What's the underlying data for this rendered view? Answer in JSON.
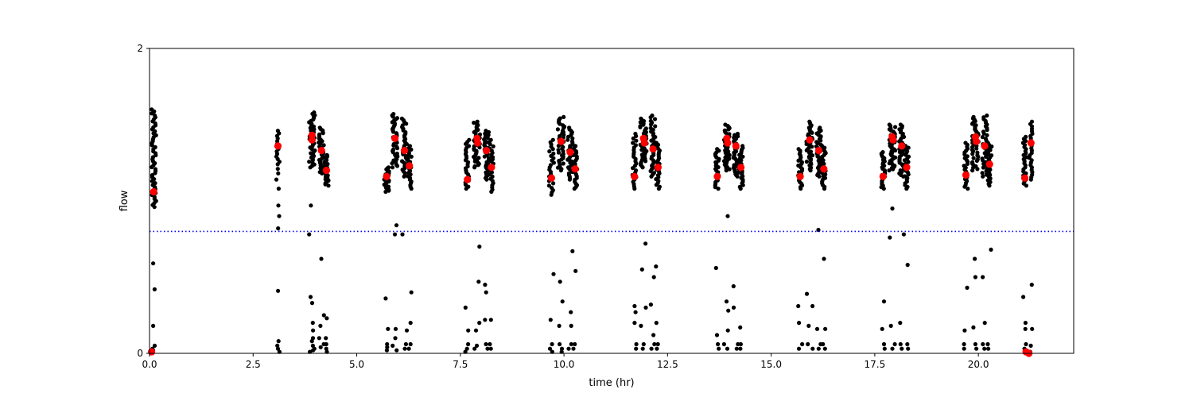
{
  "chart_data": {
    "type": "scatter",
    "title": "",
    "xlabel": "time (hr)",
    "ylabel": "flow",
    "xlim": [
      0,
      22.3
    ],
    "ylim": [
      0,
      2
    ],
    "xticks": [
      {
        "value": 0,
        "label": "0.0"
      },
      {
        "value": 2.5,
        "label": "2.5"
      },
      {
        "value": 5,
        "label": "5.0"
      },
      {
        "value": 7.5,
        "label": "7.5"
      },
      {
        "value": 10,
        "label": "10.0"
      },
      {
        "value": 12.5,
        "label": "12.5"
      },
      {
        "value": 15,
        "label": "15.0"
      },
      {
        "value": 17.5,
        "label": "17.5"
      },
      {
        "value": 20,
        "label": "20.0"
      },
      {
        "value": 22.5,
        "label": ""
      }
    ],
    "yticks": [
      {
        "value": 0,
        "label": "0"
      },
      {
        "value": 2,
        "label": "2"
      }
    ],
    "grid": false,
    "threshold": {
      "y": 0.8,
      "color": "#0000ff",
      "style": "dotted"
    },
    "colors": {
      "raw": "#000000",
      "summary": "#ff0000"
    },
    "clusters": [
      {
        "x": 0.1,
        "spread": 0.06,
        "ymin": 0.96,
        "ymax": 1.6,
        "low": [
          0.42,
          0.18,
          0.05,
          0.03,
          0.02,
          0.59
        ],
        "n": 50
      },
      {
        "x": 3.1,
        "spread": 0.04,
        "ymin": 1.24,
        "ymax": 1.46,
        "low": [
          0.82,
          0.9,
          0.97,
          1.08,
          1.14,
          1.18,
          1.21,
          0.41,
          0.08,
          0.05,
          0.03,
          0.01
        ],
        "n": 14
      },
      {
        "x": 3.92,
        "spread": 0.07,
        "ymin": 1.22,
        "ymax": 1.58,
        "low": [
          0.97,
          0.78,
          0.37,
          0.33,
          0.2,
          0.15,
          0.1,
          0.08,
          0.05,
          0.03,
          0.02,
          0.01
        ],
        "n": 40
      },
      {
        "x": 4.15,
        "spread": 0.07,
        "ymin": 1.18,
        "ymax": 1.48,
        "low": [
          0.62,
          0.25,
          0.18,
          0.1,
          0.06,
          0.04
        ],
        "n": 35
      },
      {
        "x": 4.27,
        "spread": 0.05,
        "ymin": 1.1,
        "ymax": 1.3,
        "low": [
          0.23,
          0.1,
          0.06,
          0.03,
          0.01
        ],
        "n": 25
      },
      {
        "x": 5.72,
        "spread": 0.06,
        "ymin": 1.06,
        "ymax": 1.22,
        "low": [
          0.36,
          0.16,
          0.06,
          0.04,
          0.02
        ],
        "n": 25
      },
      {
        "x": 5.92,
        "spread": 0.07,
        "ymin": 1.22,
        "ymax": 1.57,
        "low": [
          0.84,
          0.78,
          0.16,
          0.1,
          0.05,
          0.02
        ],
        "n": 40
      },
      {
        "x": 6.15,
        "spread": 0.06,
        "ymin": 1.16,
        "ymax": 1.54,
        "low": [
          0.78,
          0.15,
          0.06,
          0.03
        ],
        "n": 35
      },
      {
        "x": 6.27,
        "spread": 0.05,
        "ymin": 1.08,
        "ymax": 1.36,
        "low": [
          0.4,
          0.2,
          0.06,
          0.03
        ],
        "n": 25
      },
      {
        "x": 7.67,
        "spread": 0.05,
        "ymin": 1.08,
        "ymax": 1.4,
        "low": [
          0.3,
          0.15,
          0.06,
          0.03,
          0.01
        ],
        "n": 25
      },
      {
        "x": 7.9,
        "spread": 0.08,
        "ymin": 1.22,
        "ymax": 1.52,
        "low": [
          0.7,
          0.47,
          0.2,
          0.15,
          0.05,
          0.03
        ],
        "n": 40
      },
      {
        "x": 8.13,
        "spread": 0.06,
        "ymin": 1.14,
        "ymax": 1.46,
        "low": [
          0.45,
          0.4,
          0.22,
          0.06,
          0.03
        ],
        "n": 35
      },
      {
        "x": 8.25,
        "spread": 0.05,
        "ymin": 1.06,
        "ymax": 1.4,
        "low": [
          0.22,
          0.06,
          0.03
        ],
        "n": 25
      },
      {
        "x": 9.7,
        "spread": 0.06,
        "ymin": 1.04,
        "ymax": 1.4,
        "low": [
          0.52,
          0.22,
          0.06,
          0.03,
          0.01
        ],
        "n": 25
      },
      {
        "x": 9.93,
        "spread": 0.08,
        "ymin": 1.2,
        "ymax": 1.55,
        "low": [
          0.47,
          0.34,
          0.18,
          0.06,
          0.03,
          0.01
        ],
        "n": 40
      },
      {
        "x": 10.15,
        "spread": 0.06,
        "ymin": 1.14,
        "ymax": 1.48,
        "low": [
          0.67,
          0.27,
          0.18,
          0.06,
          0.03
        ],
        "n": 35
      },
      {
        "x": 10.27,
        "spread": 0.05,
        "ymin": 1.08,
        "ymax": 1.36,
        "low": [
          0.54,
          0.06,
          0.03
        ],
        "n": 25
      },
      {
        "x": 11.7,
        "spread": 0.05,
        "ymin": 1.08,
        "ymax": 1.44,
        "low": [
          0.31,
          0.27,
          0.2,
          0.06,
          0.03
        ],
        "n": 25
      },
      {
        "x": 11.92,
        "spread": 0.08,
        "ymin": 1.22,
        "ymax": 1.54,
        "low": [
          0.72,
          0.55,
          0.3,
          0.18,
          0.06,
          0.03
        ],
        "n": 40
      },
      {
        "x": 12.15,
        "spread": 0.06,
        "ymin": 1.16,
        "ymax": 1.56,
        "low": [
          0.5,
          0.32,
          0.12,
          0.06,
          0.03
        ],
        "n": 35
      },
      {
        "x": 12.27,
        "spread": 0.05,
        "ymin": 1.08,
        "ymax": 1.38,
        "low": [
          0.57,
          0.2,
          0.06,
          0.03
        ],
        "n": 25
      },
      {
        "x": 13.7,
        "spread": 0.05,
        "ymin": 1.08,
        "ymax": 1.34,
        "low": [
          0.56,
          0.12,
          0.06,
          0.03
        ],
        "n": 25
      },
      {
        "x": 13.93,
        "spread": 0.07,
        "ymin": 1.2,
        "ymax": 1.5,
        "low": [
          0.9,
          0.34,
          0.28,
          0.15,
          0.06,
          0.03
        ],
        "n": 40
      },
      {
        "x": 14.15,
        "spread": 0.06,
        "ymin": 1.16,
        "ymax": 1.44,
        "low": [
          0.44,
          0.3,
          0.06,
          0.03
        ],
        "n": 35
      },
      {
        "x": 14.27,
        "spread": 0.05,
        "ymin": 1.08,
        "ymax": 1.36,
        "low": [
          0.17,
          0.06,
          0.03
        ],
        "n": 25
      },
      {
        "x": 15.7,
        "spread": 0.05,
        "ymin": 1.08,
        "ymax": 1.34,
        "low": [
          0.31,
          0.2,
          0.06,
          0.03
        ],
        "n": 25
      },
      {
        "x": 15.93,
        "spread": 0.08,
        "ymin": 1.2,
        "ymax": 1.52,
        "low": [
          0.39,
          0.31,
          0.18,
          0.06,
          0.03
        ],
        "n": 40
      },
      {
        "x": 16.15,
        "spread": 0.06,
        "ymin": 1.16,
        "ymax": 1.48,
        "low": [
          0.81,
          0.16,
          0.06,
          0.03
        ],
        "n": 35
      },
      {
        "x": 16.27,
        "spread": 0.05,
        "ymin": 1.08,
        "ymax": 1.36,
        "low": [
          0.62,
          0.16,
          0.06,
          0.03
        ],
        "n": 25
      },
      {
        "x": 17.7,
        "spread": 0.05,
        "ymin": 1.08,
        "ymax": 1.32,
        "low": [
          0.34,
          0.16,
          0.06,
          0.03
        ],
        "n": 25
      },
      {
        "x": 17.92,
        "spread": 0.08,
        "ymin": 1.2,
        "ymax": 1.5,
        "low": [
          0.95,
          0.76,
          0.18,
          0.06,
          0.03
        ],
        "n": 40
      },
      {
        "x": 18.15,
        "spread": 0.06,
        "ymin": 1.16,
        "ymax": 1.5,
        "low": [
          0.78,
          0.2,
          0.06,
          0.03
        ],
        "n": 35
      },
      {
        "x": 18.27,
        "spread": 0.05,
        "ymin": 1.08,
        "ymax": 1.36,
        "low": [
          0.58,
          0.06,
          0.03
        ],
        "n": 25
      },
      {
        "x": 19.7,
        "spread": 0.05,
        "ymin": 1.08,
        "ymax": 1.38,
        "low": [
          0.43,
          0.15,
          0.06,
          0.03
        ],
        "n": 25
      },
      {
        "x": 19.93,
        "spread": 0.08,
        "ymin": 1.2,
        "ymax": 1.55,
        "low": [
          0.62,
          0.5,
          0.17,
          0.06,
          0.03
        ],
        "n": 40
      },
      {
        "x": 20.15,
        "spread": 0.06,
        "ymin": 1.16,
        "ymax": 1.56,
        "low": [
          0.5,
          0.2,
          0.06,
          0.03
        ],
        "n": 35
      },
      {
        "x": 20.27,
        "spread": 0.05,
        "ymin": 1.1,
        "ymax": 1.38,
        "low": [
          0.68,
          0.06,
          0.03
        ],
        "n": 25
      },
      {
        "x": 21.12,
        "spread": 0.04,
        "ymin": 1.1,
        "ymax": 1.42,
        "low": [
          0.37,
          0.2,
          0.16,
          0.06,
          0.03
        ],
        "n": 25
      },
      {
        "x": 21.27,
        "spread": 0.04,
        "ymin": 1.14,
        "ymax": 1.52,
        "low": [
          0.45,
          0.16,
          0.05,
          0.01
        ],
        "n": 25
      }
    ],
    "summary_points": [
      {
        "x": 0.1,
        "y": 1.06
      },
      {
        "x": 0.05,
        "y": 0.01
      },
      {
        "x": 3.1,
        "y": 1.36
      },
      {
        "x": 3.92,
        "y": 1.4
      },
      {
        "x": 3.92,
        "y": 1.43
      },
      {
        "x": 4.15,
        "y": 1.33
      },
      {
        "x": 4.27,
        "y": 1.2
      },
      {
        "x": 5.72,
        "y": 1.16
      },
      {
        "x": 5.92,
        "y": 1.41
      },
      {
        "x": 6.15,
        "y": 1.33
      },
      {
        "x": 6.27,
        "y": 1.23
      },
      {
        "x": 7.67,
        "y": 1.14
      },
      {
        "x": 7.9,
        "y": 1.41
      },
      {
        "x": 7.92,
        "y": 1.38
      },
      {
        "x": 8.13,
        "y": 1.33
      },
      {
        "x": 8.25,
        "y": 1.22
      },
      {
        "x": 9.7,
        "y": 1.15
      },
      {
        "x": 9.93,
        "y": 1.39
      },
      {
        "x": 10.15,
        "y": 1.32
      },
      {
        "x": 10.27,
        "y": 1.21
      },
      {
        "x": 11.7,
        "y": 1.16
      },
      {
        "x": 11.92,
        "y": 1.41
      },
      {
        "x": 11.94,
        "y": 1.38
      },
      {
        "x": 12.15,
        "y": 1.34
      },
      {
        "x": 12.27,
        "y": 1.22
      },
      {
        "x": 13.7,
        "y": 1.16
      },
      {
        "x": 13.93,
        "y": 1.41
      },
      {
        "x": 13.95,
        "y": 1.38
      },
      {
        "x": 14.15,
        "y": 1.36
      },
      {
        "x": 14.27,
        "y": 1.22
      },
      {
        "x": 15.7,
        "y": 1.16
      },
      {
        "x": 15.93,
        "y": 1.4
      },
      {
        "x": 16.15,
        "y": 1.33
      },
      {
        "x": 16.27,
        "y": 1.21
      },
      {
        "x": 17.7,
        "y": 1.16
      },
      {
        "x": 17.92,
        "y": 1.42
      },
      {
        "x": 17.94,
        "y": 1.4
      },
      {
        "x": 18.15,
        "y": 1.36
      },
      {
        "x": 18.27,
        "y": 1.22
      },
      {
        "x": 19.7,
        "y": 1.17
      },
      {
        "x": 19.93,
        "y": 1.42
      },
      {
        "x": 19.95,
        "y": 1.39
      },
      {
        "x": 20.15,
        "y": 1.36
      },
      {
        "x": 20.27,
        "y": 1.24
      },
      {
        "x": 21.12,
        "y": 1.15
      },
      {
        "x": 21.27,
        "y": 1.38
      },
      {
        "x": 21.15,
        "y": 0.01
      },
      {
        "x": 21.22,
        "y": 0.0
      }
    ]
  }
}
